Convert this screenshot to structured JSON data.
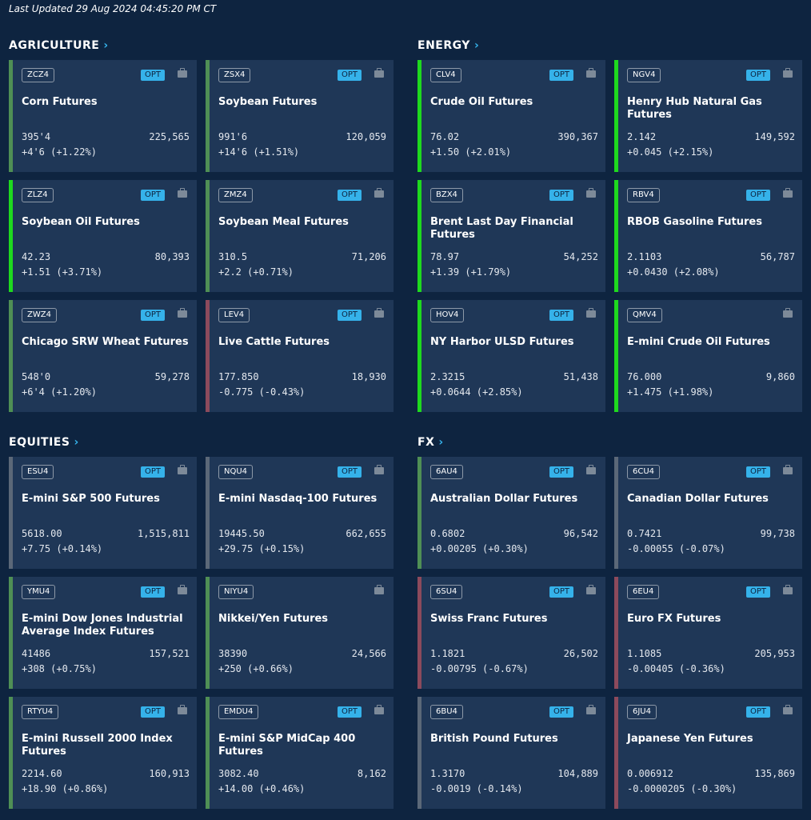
{
  "last_updated": "Last Updated 29 Aug 2024 04:45:20 PM CT",
  "colors": {
    "up_strong": "#1ed91e",
    "up_mid": "#4f8f55",
    "down": "#8c4a5c",
    "neutral": "#5b6878",
    "opt": "#35b2ea"
  },
  "sections": [
    {
      "title": "AGRICULTURE",
      "cards": [
        {
          "symbol": "ZCZ4",
          "opt": "OPT",
          "name": "Corn Futures",
          "price": "395'4",
          "volume": "225,565",
          "change": "+4'6 (+1.22%)",
          "accent": "up_mid"
        },
        {
          "symbol": "ZSX4",
          "opt": "OPT",
          "name": "Soybean Futures",
          "price": "991'6",
          "volume": "120,059",
          "change": "+14'6 (+1.51%)",
          "accent": "up_mid"
        },
        {
          "symbol": "ZLZ4",
          "opt": "OPT",
          "name": "Soybean Oil Futures",
          "price": "42.23",
          "volume": "80,393",
          "change": "+1.51 (+3.71%)",
          "accent": "up_strong"
        },
        {
          "symbol": "ZMZ4",
          "opt": "OPT",
          "name": "Soybean Meal Futures",
          "price": "310.5",
          "volume": "71,206",
          "change": "+2.2 (+0.71%)",
          "accent": "up_mid"
        },
        {
          "symbol": "ZWZ4",
          "opt": "OPT",
          "name": "Chicago SRW Wheat Futures",
          "price": "548'0",
          "volume": "59,278",
          "change": "+6'4 (+1.20%)",
          "accent": "up_mid"
        },
        {
          "symbol": "LEV4",
          "opt": "OPT",
          "name": "Live Cattle Futures",
          "price": "177.850",
          "volume": "18,930",
          "change": "-0.775 (-0.43%)",
          "accent": "down"
        }
      ]
    },
    {
      "title": "ENERGY",
      "cards": [
        {
          "symbol": "CLV4",
          "opt": "OPT",
          "name": "Crude Oil Futures",
          "price": "76.02",
          "volume": "390,367",
          "change": "+1.50 (+2.01%)",
          "accent": "up_strong"
        },
        {
          "symbol": "NGV4",
          "opt": "OPT",
          "name": "Henry Hub Natural Gas Futures",
          "price": "2.142",
          "volume": "149,592",
          "change": "+0.045 (+2.15%)",
          "accent": "up_strong"
        },
        {
          "symbol": "BZX4",
          "opt": "OPT",
          "name": "Brent Last Day Financial Futures",
          "price": "78.97",
          "volume": "54,252",
          "change": "+1.39 (+1.79%)",
          "accent": "up_strong"
        },
        {
          "symbol": "RBV4",
          "opt": "OPT",
          "name": "RBOB Gasoline Futures",
          "price": "2.1103",
          "volume": "56,787",
          "change": "+0.0430 (+2.08%)",
          "accent": "up_strong"
        },
        {
          "symbol": "HOV4",
          "opt": "OPT",
          "name": "NY Harbor ULSD Futures",
          "price": "2.3215",
          "volume": "51,438",
          "change": "+0.0644 (+2.85%)",
          "accent": "up_strong"
        },
        {
          "symbol": "QMV4",
          "opt": "",
          "name": "E-mini Crude Oil Futures",
          "price": "76.000",
          "volume": "9,860",
          "change": "+1.475 (+1.98%)",
          "accent": "up_strong"
        }
      ]
    },
    {
      "title": "EQUITIES",
      "cards": [
        {
          "symbol": "ESU4",
          "opt": "OPT",
          "name": "E-mini S&P 500 Futures",
          "price": "5618.00",
          "volume": "1,515,811",
          "change": "+7.75 (+0.14%)",
          "accent": "neutral"
        },
        {
          "symbol": "NQU4",
          "opt": "OPT",
          "name": "E-mini Nasdaq-100 Futures",
          "price": "19445.50",
          "volume": "662,655",
          "change": "+29.75 (+0.15%)",
          "accent": "neutral"
        },
        {
          "symbol": "YMU4",
          "opt": "OPT",
          "name": "E-mini Dow Jones Industrial Average Index Futures",
          "price": "41486",
          "volume": "157,521",
          "change": "+308 (+0.75%)",
          "accent": "up_mid"
        },
        {
          "symbol": "NIYU4",
          "opt": "",
          "name": "Nikkei/Yen Futures",
          "price": "38390",
          "volume": "24,566",
          "change": "+250 (+0.66%)",
          "accent": "up_mid"
        },
        {
          "symbol": "RTYU4",
          "opt": "OPT",
          "name": "E-mini  Russell 2000 Index Futures",
          "price": "2214.60",
          "volume": "160,913",
          "change": "+18.90 (+0.86%)",
          "accent": "up_mid"
        },
        {
          "symbol": "EMDU4",
          "opt": "OPT",
          "name": "E-mini S&P MidCap 400 Futures",
          "price": "3082.40",
          "volume": "8,162",
          "change": "+14.00 (+0.46%)",
          "accent": "up_mid"
        }
      ]
    },
    {
      "title": "FX",
      "cards": [
        {
          "symbol": "6AU4",
          "opt": "OPT",
          "name": "Australian Dollar Futures",
          "price": "0.6802",
          "volume": "96,542",
          "change": "+0.00205 (+0.30%)",
          "accent": "up_mid"
        },
        {
          "symbol": "6CU4",
          "opt": "OPT",
          "name": "Canadian Dollar Futures",
          "price": "0.7421",
          "volume": "99,738",
          "change": "-0.00055 (-0.07%)",
          "accent": "neutral"
        },
        {
          "symbol": "6SU4",
          "opt": "OPT",
          "name": "Swiss Franc Futures",
          "price": "1.1821",
          "volume": "26,502",
          "change": "-0.00795 (-0.67%)",
          "accent": "down"
        },
        {
          "symbol": "6EU4",
          "opt": "OPT",
          "name": "Euro FX Futures",
          "price": "1.1085",
          "volume": "205,953",
          "change": "-0.00405 (-0.36%)",
          "accent": "down"
        },
        {
          "symbol": "6BU4",
          "opt": "OPT",
          "name": "British Pound Futures",
          "price": "1.3170",
          "volume": "104,889",
          "change": "-0.0019 (-0.14%)",
          "accent": "neutral"
        },
        {
          "symbol": "6JU4",
          "opt": "OPT",
          "name": "Japanese Yen Futures",
          "price": "0.006912",
          "volume": "135,869",
          "change": "-0.0000205 (-0.30%)",
          "accent": "down"
        }
      ]
    }
  ]
}
